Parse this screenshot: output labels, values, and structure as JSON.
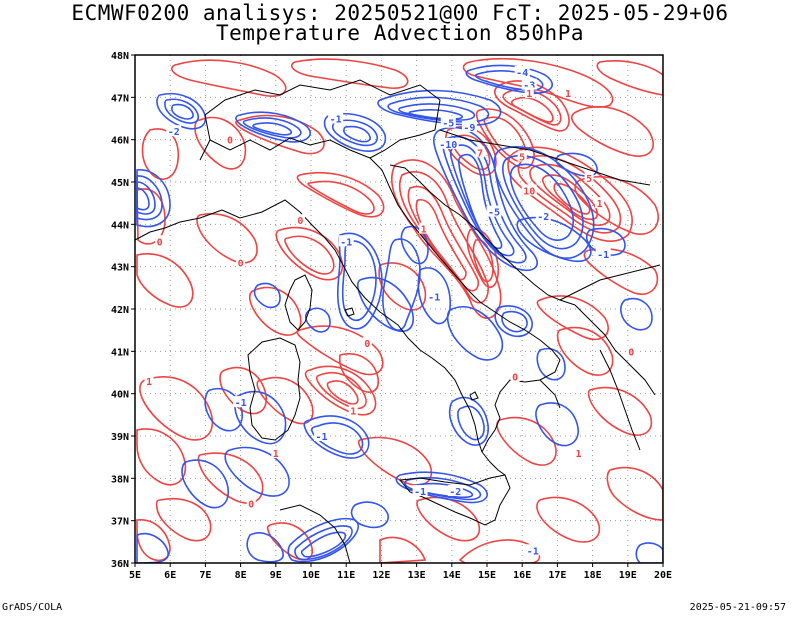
{
  "title": "ECMWF0200 analisys: 20250521@00 FcT: 2025-05-29+06",
  "subtitle": "Temperature Advection 850hPa",
  "footer_left": "GrADS/COLA",
  "footer_right": "2025-05-21-09:57",
  "map": {
    "lon_range": [
      5,
      20
    ],
    "lat_range": [
      36,
      48
    ],
    "grid": "dotted",
    "lon_labels": [
      "5E",
      "6E",
      "7E",
      "8E",
      "9E",
      "10E",
      "11E",
      "12E",
      "13E",
      "14E",
      "15E",
      "16E",
      "17E",
      "18E",
      "19E",
      "20E"
    ],
    "lat_labels": [
      "36N",
      "37N",
      "38N",
      "39N",
      "40N",
      "41N",
      "42N",
      "43N",
      "44N",
      "45N",
      "46N",
      "47N",
      "48N"
    ],
    "colors": {
      "positive": "#ee4444",
      "negative": "#3355ee",
      "coast": "#000000",
      "grid": "#999999"
    },
    "contour_labels": [
      {
        "text": "-2",
        "lon": 6.1,
        "lat": 46.2,
        "sign": "neg"
      },
      {
        "text": "-1",
        "lon": 10.7,
        "lat": 46.5,
        "sign": "neg"
      },
      {
        "text": "-5",
        "lon": 13.9,
        "lat": 46.4,
        "sign": "neg"
      },
      {
        "text": "-9",
        "lon": 14.5,
        "lat": 46.3,
        "sign": "neg"
      },
      {
        "text": "-10",
        "lon": 13.9,
        "lat": 45.9,
        "sign": "neg"
      },
      {
        "text": "-4",
        "lon": 16.0,
        "lat": 47.6,
        "sign": "neg"
      },
      {
        "text": "-3",
        "lon": 16.2,
        "lat": 47.3,
        "sign": "neg"
      },
      {
        "text": "-2",
        "lon": 16.6,
        "lat": 44.2,
        "sign": "neg"
      },
      {
        "text": "-5",
        "lon": 15.2,
        "lat": 44.3,
        "sign": "neg"
      },
      {
        "text": "-1",
        "lon": 11.0,
        "lat": 43.6,
        "sign": "neg"
      },
      {
        "text": "-1",
        "lon": 13.5,
        "lat": 42.3,
        "sign": "neg"
      },
      {
        "text": "-2",
        "lon": 14.1,
        "lat": 37.7,
        "sign": "neg"
      },
      {
        "text": "-1",
        "lon": 13.1,
        "lat": 37.7,
        "sign": "neg"
      },
      {
        "text": "-1",
        "lon": 8.0,
        "lat": 39.8,
        "sign": "neg"
      },
      {
        "text": "-1",
        "lon": 10.3,
        "lat": 39.0,
        "sign": "neg"
      },
      {
        "text": "-1",
        "lon": 16.3,
        "lat": 36.3,
        "sign": "neg"
      },
      {
        "text": "-1",
        "lon": 18.3,
        "lat": 43.3,
        "sign": "neg"
      },
      {
        "text": "1",
        "lon": 16.2,
        "lat": 47.1,
        "sign": "pos"
      },
      {
        "text": "1",
        "lon": 17.3,
        "lat": 47.1,
        "sign": "pos"
      },
      {
        "text": "5",
        "lon": 17.9,
        "lat": 45.1,
        "sign": "pos"
      },
      {
        "text": "5",
        "lon": 16.0,
        "lat": 45.6,
        "sign": "pos"
      },
      {
        "text": "10",
        "lon": 16.2,
        "lat": 44.8,
        "sign": "pos"
      },
      {
        "text": "7",
        "lon": 14.8,
        "lat": 45.7,
        "sign": "pos"
      },
      {
        "text": "1",
        "lon": 18.2,
        "lat": 44.5,
        "sign": "pos"
      },
      {
        "text": "1",
        "lon": 13.2,
        "lat": 43.9,
        "sign": "pos"
      },
      {
        "text": "0",
        "lon": 8.0,
        "lat": 43.1,
        "sign": "pos"
      },
      {
        "text": "0",
        "lon": 5.7,
        "lat": 43.6,
        "sign": "pos"
      },
      {
        "text": "0",
        "lon": 11.6,
        "lat": 41.2,
        "sign": "pos"
      },
      {
        "text": "0",
        "lon": 7.7,
        "lat": 46.0,
        "sign": "pos"
      },
      {
        "text": "1",
        "lon": 11.2,
        "lat": 39.6,
        "sign": "pos"
      },
      {
        "text": "1",
        "lon": 9.0,
        "lat": 38.6,
        "sign": "pos"
      },
      {
        "text": "0",
        "lon": 8.3,
        "lat": 37.4,
        "sign": "pos"
      },
      {
        "text": "0",
        "lon": 19.1,
        "lat": 41.0,
        "sign": "pos"
      },
      {
        "text": "1",
        "lon": 17.6,
        "lat": 38.6,
        "sign": "pos"
      },
      {
        "text": "1",
        "lon": 5.4,
        "lat": 40.3,
        "sign": "pos"
      },
      {
        "text": "0",
        "lon": 9.7,
        "lat": 44.1,
        "sign": "pos"
      },
      {
        "text": "0",
        "lon": 15.8,
        "lat": 40.4,
        "sign": "pos"
      }
    ]
  }
}
